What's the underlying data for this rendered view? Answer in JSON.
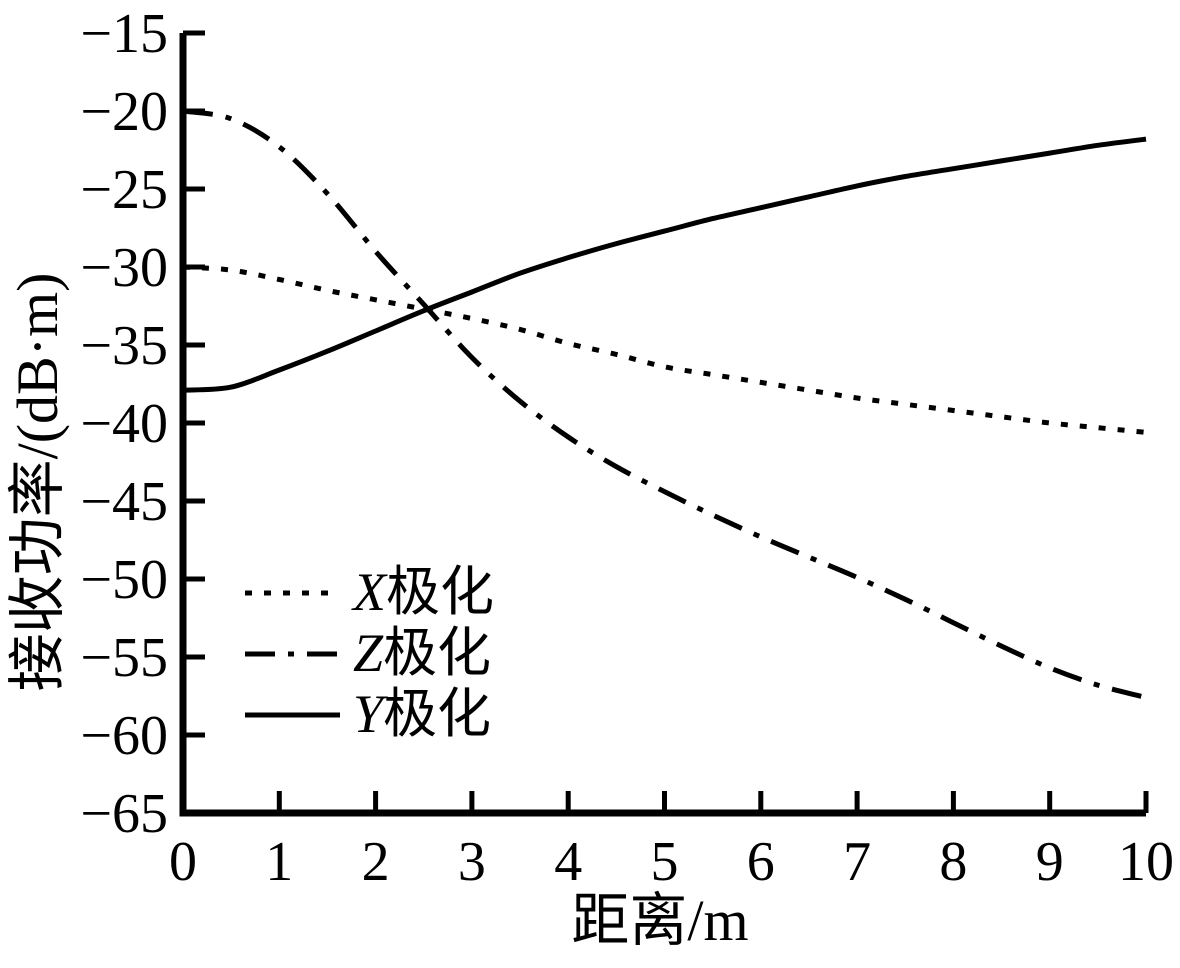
{
  "figure": {
    "background": "#ffffff",
    "ink": "#000000"
  },
  "chart_data": {
    "type": "line",
    "title": "",
    "xlabel": "距离/m",
    "ylabel": "接收功率/(dB·m)",
    "xlim": [
      0,
      10
    ],
    "ylim": [
      -65,
      -15
    ],
    "x_ticks": [
      0,
      1,
      2,
      3,
      4,
      5,
      6,
      7,
      8,
      9,
      10
    ],
    "y_ticks": [
      -15,
      -20,
      -25,
      -30,
      -35,
      -40,
      -45,
      -50,
      -55,
      -60,
      -65
    ],
    "grid": false,
    "legend_position": "inside-lower-left",
    "x": [
      0,
      0.5,
      1,
      1.5,
      2,
      2.5,
      3,
      3.5,
      4,
      4.5,
      5,
      5.5,
      6,
      6.5,
      7,
      7.5,
      8,
      8.5,
      9,
      9.5,
      10
    ],
    "series": [
      {
        "name": "X极化",
        "legend_var": "X",
        "legend_suffix": "极化",
        "style": "dotted",
        "values": [
          -30.0,
          -30.2,
          -30.8,
          -31.5,
          -32.1,
          -32.7,
          -33.3,
          -34.0,
          -34.9,
          -35.6,
          -36.4,
          -36.9,
          -37.4,
          -37.9,
          -38.4,
          -38.8,
          -39.2,
          -39.6,
          -40.0,
          -40.3,
          -40.6
        ]
      },
      {
        "name": "Z极化",
        "legend_var": "Z",
        "legend_suffix": "极化",
        "style": "dashdot",
        "values": [
          -20.0,
          -20.5,
          -22.3,
          -25.3,
          -29.0,
          -32.4,
          -35.8,
          -38.6,
          -40.9,
          -42.8,
          -44.4,
          -45.9,
          -47.3,
          -48.6,
          -49.9,
          -51.3,
          -52.8,
          -54.3,
          -55.7,
          -56.8,
          -57.6
        ]
      },
      {
        "name": "Y极化",
        "legend_var": "Y",
        "legend_suffix": "极化",
        "style": "solid",
        "values": [
          -37.9,
          -37.7,
          -36.6,
          -35.4,
          -34.1,
          -32.8,
          -31.6,
          -30.4,
          -29.4,
          -28.5,
          -27.7,
          -26.9,
          -26.2,
          -25.5,
          -24.8,
          -24.2,
          -23.7,
          -23.2,
          -22.7,
          -22.2,
          -21.8
        ]
      }
    ]
  }
}
